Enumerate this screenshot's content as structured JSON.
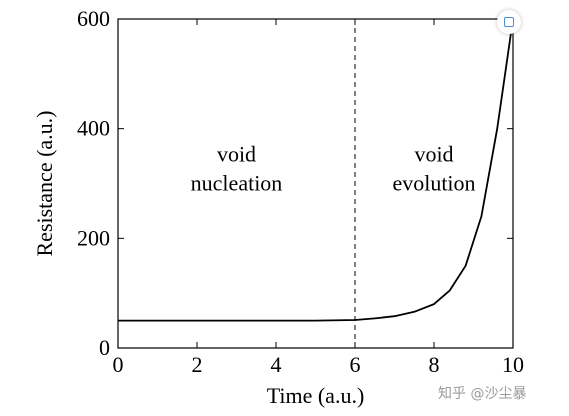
{
  "chart_data": {
    "type": "line",
    "xlabel": "Time (a.u.)",
    "ylabel": "Resistance (a.u.)",
    "xlim": [
      0,
      10
    ],
    "ylim": [
      0,
      600
    ],
    "x_ticks": [
      "0",
      "2",
      "4",
      "6",
      "8",
      "10"
    ],
    "y_ticks": [
      "0",
      "200",
      "400",
      "600"
    ],
    "series": [
      {
        "color": "#000000",
        "x": [
          0,
          1,
          2,
          3,
          4,
          5,
          6,
          6.5,
          7,
          7.5,
          8,
          8.4,
          8.8,
          9.2,
          9.6,
          10
        ],
        "y": [
          50,
          50,
          50,
          50,
          50,
          50,
          51,
          54,
          58,
          66,
          80,
          105,
          150,
          240,
          400,
          600
        ]
      }
    ],
    "vline": {
      "x": 6,
      "style": "dashed"
    },
    "annotations": [
      {
        "lines": [
          "void",
          "nucleation"
        ],
        "x": 3,
        "y": 340
      },
      {
        "lines": [
          "void",
          "evolution"
        ],
        "x": 8,
        "y": 340
      }
    ],
    "grid": false,
    "legend": "none"
  },
  "watermark": "知乎 @沙尘暴",
  "icons": {
    "corner": "expand-icon"
  }
}
